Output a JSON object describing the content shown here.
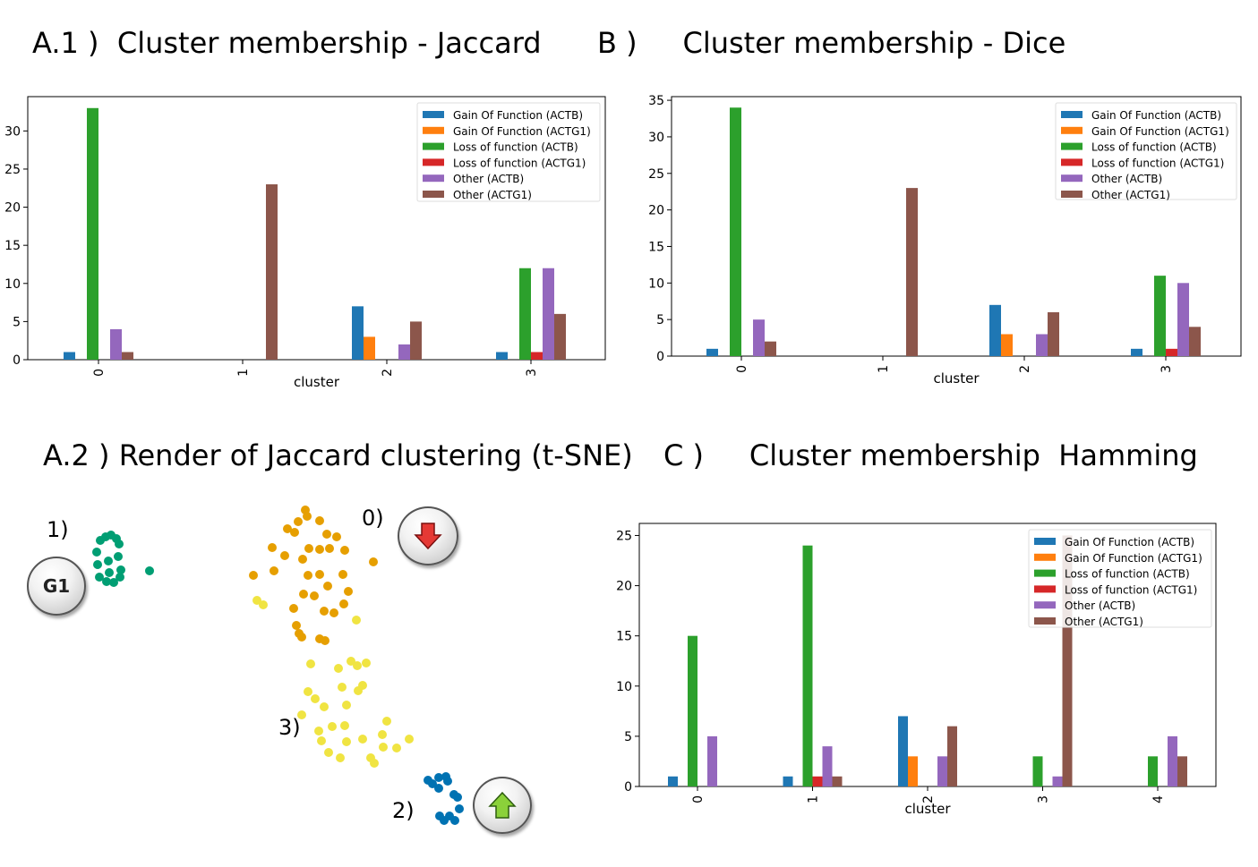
{
  "titles": {
    "a1_prefix": "A.1 )",
    "a1_text": "Cluster membership - Jaccard",
    "b_prefix": "B )",
    "b_text": "Cluster membership - Dice",
    "a2_prefix": "A.2 )",
    "a2_text": "Render of Jaccard clustering (t-SNE)",
    "c_prefix": "C )",
    "c_text": "Cluster membership  Hamming"
  },
  "colors": {
    "Gain Of Function (ACTB)": "#1f77b4",
    "Gain Of Function (ACTG1)": "#ff7f0e",
    "Loss of function (ACTB)": "#2ca02c",
    "Loss of function (ACTG1)": "#d62728",
    "Other (ACTB)": "#9467bd",
    "Other (ACTG1)": "#8c564b"
  },
  "chart_data": [
    {
      "id": "jaccard",
      "type": "bar",
      "xlabel": "cluster",
      "categories": [
        "0",
        "1",
        "2",
        "3"
      ],
      "ylim": [
        0,
        34.5
      ],
      "yticks": [
        0,
        5,
        10,
        15,
        20,
        25,
        30
      ],
      "legend_position": "top-right",
      "series": [
        {
          "name": "Gain Of Function (ACTB)",
          "values": [
            1,
            0,
            7,
            1
          ]
        },
        {
          "name": "Gain Of Function (ACTG1)",
          "values": [
            0,
            0,
            3,
            0
          ]
        },
        {
          "name": "Loss of function (ACTB)",
          "values": [
            33,
            0,
            0,
            12
          ]
        },
        {
          "name": "Loss of function (ACTG1)",
          "values": [
            0,
            0,
            0,
            1
          ]
        },
        {
          "name": "Other (ACTB)",
          "values": [
            4,
            0,
            2,
            12
          ]
        },
        {
          "name": "Other (ACTG1)",
          "values": [
            1,
            23,
            5,
            6
          ]
        }
      ]
    },
    {
      "id": "dice",
      "type": "bar",
      "xlabel": "cluster",
      "categories": [
        "0",
        "1",
        "2",
        "3"
      ],
      "ylim": [
        0,
        35.5
      ],
      "yticks": [
        0,
        5,
        10,
        15,
        20,
        25,
        30,
        35
      ],
      "legend_position": "top-right",
      "series": [
        {
          "name": "Gain Of Function (ACTB)",
          "values": [
            1,
            0,
            7,
            1
          ]
        },
        {
          "name": "Gain Of Function (ACTG1)",
          "values": [
            0,
            0,
            3,
            0
          ]
        },
        {
          "name": "Loss of function (ACTB)",
          "values": [
            34,
            0,
            0,
            11
          ]
        },
        {
          "name": "Loss of function (ACTG1)",
          "values": [
            0,
            0,
            0,
            1
          ]
        },
        {
          "name": "Other (ACTB)",
          "values": [
            5,
            0,
            3,
            10
          ]
        },
        {
          "name": "Other (ACTG1)",
          "values": [
            2,
            23,
            6,
            4
          ]
        }
      ]
    },
    {
      "id": "hamming",
      "type": "bar",
      "xlabel": "cluster",
      "categories": [
        "0",
        "1",
        "2",
        "3",
        "4"
      ],
      "ylim": [
        0,
        26.2
      ],
      "yticks": [
        0,
        5,
        10,
        15,
        20,
        25
      ],
      "legend_position": "top-right",
      "series": [
        {
          "name": "Gain Of Function (ACTB)",
          "values": [
            1,
            1,
            7,
            0,
            0
          ]
        },
        {
          "name": "Gain Of Function (ACTG1)",
          "values": [
            0,
            0,
            3,
            0,
            0
          ]
        },
        {
          "name": "Loss of function (ACTB)",
          "values": [
            15,
            24,
            0,
            3,
            3
          ]
        },
        {
          "name": "Loss of function (ACTG1)",
          "values": [
            0,
            1,
            0,
            0,
            0
          ]
        },
        {
          "name": "Other (ACTB)",
          "values": [
            5,
            4,
            3,
            1,
            5
          ]
        },
        {
          "name": "Other (ACTG1)",
          "values": [
            0,
            1,
            6,
            25,
            3
          ]
        }
      ]
    }
  ],
  "tsne": {
    "cluster_labels": [
      "0)",
      "1)",
      "2)",
      "3)"
    ],
    "button_g1_label": "G1",
    "button_down_icon": "red-down-arrow-icon",
    "button_up_icon": "green-up-arrow-icon",
    "cluster_colors": {
      "0": "#e69f00",
      "1": "#009e73",
      "2": "#0072b2",
      "3": "#f0e442"
    }
  }
}
